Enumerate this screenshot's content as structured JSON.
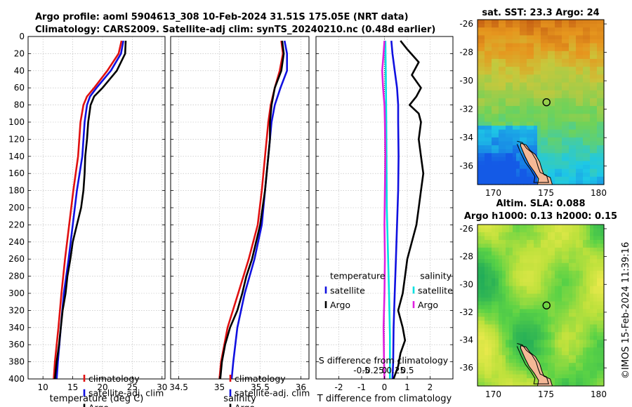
{
  "header": {
    "line1": "Argo profile: aoml 5904613_308 10-Feb-2024 31.51S 175.05E (NRT data)",
    "line2": "Climatology: CARS2009. Satellite-adj clim: synTS_20240210.nc (0.48d earlier)"
  },
  "credit": "©IMOS 15-Feb-2024 11:39:16",
  "colors": {
    "climatology": "#e01010",
    "satellite": "#1010e0",
    "argo": "#000000",
    "salinity_sat": "#00e0e0",
    "salinity_argo": "#e020e0"
  },
  "chart_data": [
    {
      "id": "temperature",
      "type": "line",
      "xlabel": "temperature (deg C)",
      "ylabel": "",
      "xlim": [
        7.5,
        30.5
      ],
      "ylim": [
        0,
        400
      ],
      "xticks": [
        10,
        15,
        20,
        25,
        30
      ],
      "yticks": [
        0,
        20,
        40,
        60,
        80,
        100,
        120,
        140,
        160,
        180,
        200,
        220,
        240,
        260,
        280,
        300,
        320,
        340,
        360,
        380,
        400
      ],
      "legend": [
        "climatology",
        "satellite-adj. clim",
        "Argo"
      ],
      "series": [
        {
          "name": "climatology",
          "color": "#e01010",
          "depth": [
            5,
            20,
            40,
            60,
            70,
            80,
            100,
            140,
            180,
            220,
            260,
            300,
            340,
            380,
            400
          ],
          "values": [
            23.2,
            22.7,
            20.8,
            18.6,
            17.4,
            16.8,
            16.3,
            15.9,
            15.1,
            14.4,
            13.7,
            13.1,
            12.6,
            12.0,
            11.8
          ]
        },
        {
          "name": "satellite-adj. clim",
          "color": "#1010e0",
          "depth": [
            5,
            20,
            40,
            60,
            70,
            80,
            100,
            140,
            180,
            220,
            260,
            300,
            340,
            380,
            400
          ],
          "values": [
            23.5,
            23.1,
            21.4,
            19.0,
            17.9,
            17.4,
            17.0,
            16.6,
            15.7,
            15.0,
            14.3,
            13.5,
            13.0,
            12.5,
            12.3
          ]
        },
        {
          "name": "Argo",
          "color": "#000000",
          "depth": [
            5,
            20,
            40,
            60,
            70,
            80,
            100,
            120,
            140,
            160,
            180,
            200,
            220,
            240,
            260,
            280,
            300,
            320,
            340,
            360,
            380,
            400
          ],
          "values": [
            23.9,
            23.8,
            22.4,
            20.0,
            18.6,
            18.0,
            17.6,
            17.4,
            17.1,
            17.0,
            16.8,
            16.4,
            15.7,
            15.0,
            14.6,
            14.1,
            13.8,
            13.3,
            13.0,
            12.7,
            12.3,
            12.0
          ]
        }
      ]
    },
    {
      "id": "salinity",
      "type": "line",
      "xlabel": "salinity",
      "ylabel": "",
      "xlim": [
        34.4,
        36.1
      ],
      "ylim": [
        0,
        400
      ],
      "xticks": [
        34.5,
        35,
        35.5,
        36
      ],
      "xticklabels": [
        "34.5",
        "35",
        "35.5",
        "36"
      ],
      "legend": [
        "climatology",
        "satellite-adj. clim",
        "Argo"
      ],
      "series": [
        {
          "name": "climatology",
          "color": "#e01010",
          "depth": [
            5,
            20,
            40,
            60,
            80,
            100,
            140,
            180,
            220,
            260,
            300,
            340,
            380,
            400
          ],
          "values": [
            35.76,
            35.78,
            35.74,
            35.68,
            35.63,
            35.6,
            35.56,
            35.52,
            35.47,
            35.36,
            35.23,
            35.1,
            35.02,
            35.0
          ]
        },
        {
          "name": "satellite-adj. clim",
          "color": "#1010e0",
          "depth": [
            5,
            20,
            40,
            60,
            80,
            100,
            140,
            180,
            220,
            260,
            300,
            340,
            380,
            400
          ],
          "values": [
            35.8,
            35.83,
            35.83,
            35.75,
            35.68,
            35.64,
            35.6,
            35.56,
            35.52,
            35.43,
            35.31,
            35.22,
            35.17,
            35.15
          ]
        },
        {
          "name": "Argo",
          "color": "#000000",
          "depth": [
            5,
            20,
            40,
            60,
            80,
            100,
            120,
            140,
            160,
            180,
            200,
            220,
            240,
            260,
            280,
            300,
            320,
            340,
            360,
            380,
            400
          ],
          "values": [
            35.77,
            35.79,
            35.76,
            35.68,
            35.64,
            35.62,
            35.62,
            35.6,
            35.58,
            35.56,
            35.53,
            35.5,
            35.45,
            35.4,
            35.33,
            35.28,
            35.22,
            35.13,
            35.07,
            35.03,
            35.01
          ]
        }
      ]
    },
    {
      "id": "difference",
      "type": "line",
      "xlabel": "T difference from climatology",
      "xlabel_top": "S difference from climatology",
      "xlim": [
        -3,
        3
      ],
      "ylim": [
        0,
        400
      ],
      "xticks": [
        -2,
        -1,
        0,
        1,
        2
      ],
      "xticklabels": [
        "-2",
        "-1",
        "0",
        "1",
        "2"
      ],
      "s_ticks": [
        -0.5,
        -0.25,
        0,
        0.25,
        0.5
      ],
      "s_ticklabels": [
        "-0.5",
        "-0.25",
        "0",
        "0.25",
        "0.5"
      ],
      "s_scale": 2,
      "legend_temperature_title": "temperature",
      "legend_salinity_title": "salinity",
      "legend_temperature": [
        "satellite",
        "Argo"
      ],
      "legend_salinity": [
        "satellite",
        "Argo"
      ],
      "series": [
        {
          "name": "T satellite",
          "color": "#1010e0",
          "depth": [
            5,
            20,
            40,
            60,
            80,
            100,
            140,
            180,
            220,
            260,
            300,
            340,
            380,
            400
          ],
          "values": [
            0.3,
            0.35,
            0.45,
            0.55,
            0.6,
            0.6,
            0.62,
            0.6,
            0.55,
            0.5,
            0.45,
            0.4,
            0.38,
            0.35
          ]
        },
        {
          "name": "T Argo",
          "color": "#000000",
          "depth": [
            5,
            15,
            30,
            45,
            60,
            70,
            80,
            90,
            100,
            120,
            140,
            160,
            180,
            200,
            220,
            240,
            260,
            280,
            300,
            320,
            340,
            355,
            370,
            385,
            400
          ],
          "values": [
            0.7,
            1.0,
            1.5,
            1.2,
            1.6,
            1.4,
            1.1,
            1.5,
            1.6,
            1.5,
            1.6,
            1.7,
            1.6,
            1.5,
            1.4,
            1.2,
            1.0,
            0.9,
            0.8,
            0.6,
            0.8,
            0.9,
            0.7,
            0.6,
            0.4
          ]
        },
        {
          "name": "S satellite",
          "color": "#00e0e0",
          "depth": [
            5,
            50,
            100,
            200,
            300,
            350,
            400
          ],
          "values": [
            0.02,
            0.03,
            0.04,
            0.05,
            0.1,
            0.12,
            0.12
          ]
        },
        {
          "name": "S Argo",
          "color": "#e020e0",
          "depth": [
            5,
            20,
            40,
            60,
            80,
            100,
            140,
            180,
            220,
            260,
            300,
            340,
            380,
            400
          ],
          "values": [
            0.0,
            -0.02,
            -0.05,
            -0.03,
            0.0,
            0.01,
            0.02,
            0.01,
            0.0,
            0.01,
            0.0,
            -0.02,
            -0.01,
            0.0
          ]
        }
      ]
    },
    {
      "id": "sst-map",
      "type": "heatmap",
      "title": "sat. SST: 23.3 Argo: 24",
      "xlim": [
        168.5,
        180.5
      ],
      "ylim": [
        -37.3,
        -25.7
      ],
      "xticks": [
        170,
        175,
        180
      ],
      "yticks": [
        -26,
        -28,
        -30,
        -32,
        -34,
        -36
      ],
      "argo_position": {
        "lon": 175.05,
        "lat": -31.51
      }
    },
    {
      "id": "sla-map",
      "type": "heatmap",
      "title_line1": "Altim. SLA: 0.088",
      "title_line2": "Argo h1000: 0.13 h2000: 0.15",
      "xlim": [
        168.5,
        180.5
      ],
      "ylim": [
        -37.3,
        -25.7
      ],
      "xticks": [
        170,
        175,
        180
      ],
      "yticks": [
        -26,
        -28,
        -30,
        -32,
        -34,
        -36
      ],
      "argo_position": {
        "lon": 175.05,
        "lat": -31.51
      }
    }
  ]
}
